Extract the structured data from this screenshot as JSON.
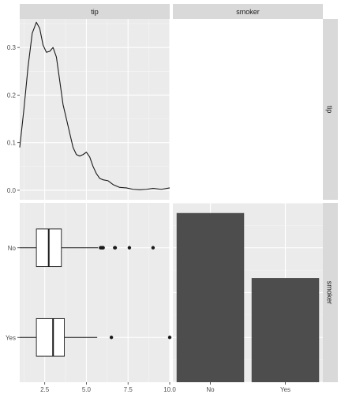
{
  "colors": {
    "panel_bg": "#ebebeb",
    "grid_major": "#ffffff",
    "grid_minor": "#f5f5f5",
    "strip_bg": "#d9d9d9",
    "ink": "#1a1a1a",
    "bar_fill": "#4d4d4d",
    "box_fill": "#ffffff"
  },
  "strips": {
    "col": [
      "tip",
      "smoker"
    ],
    "row": [
      "tip",
      "smoker"
    ]
  },
  "chart_data": [
    {
      "panel": "tip-tip",
      "type": "line",
      "xlim": [
        1,
        10
      ],
      "ylim": [
        -0.02,
        0.36
      ],
      "yticks": [
        0.0,
        0.1,
        0.2,
        0.3
      ],
      "ytick_labels": [
        "0.0",
        "0.1",
        "0.2",
        "0.3"
      ],
      "grid": true,
      "x": [
        1.0,
        1.25,
        1.5,
        1.75,
        2.0,
        2.2,
        2.4,
        2.6,
        2.8,
        3.0,
        3.2,
        3.4,
        3.6,
        3.8,
        4.0,
        4.2,
        4.4,
        4.6,
        4.8,
        5.0,
        5.2,
        5.4,
        5.6,
        5.8,
        6.0,
        6.3,
        6.6,
        7.0,
        7.4,
        7.8,
        8.2,
        8.6,
        9.0,
        9.5,
        10.0
      ],
      "y": [
        0.09,
        0.17,
        0.26,
        0.33,
        0.353,
        0.34,
        0.305,
        0.29,
        0.292,
        0.3,
        0.28,
        0.23,
        0.18,
        0.15,
        0.12,
        0.09,
        0.075,
        0.072,
        0.075,
        0.08,
        0.07,
        0.05,
        0.035,
        0.025,
        0.022,
        0.02,
        0.012,
        0.006,
        0.005,
        0.002,
        0.001,
        0.002,
        0.004,
        0.002,
        0.005
      ]
    },
    {
      "panel": "smoker-tip",
      "type": "box",
      "categories": [
        "No",
        "Yes"
      ],
      "xlim": [
        1,
        10
      ],
      "xticks": [
        2.5,
        5.0,
        7.5,
        10.0
      ],
      "xtick_labels": [
        "2.5",
        "5.0",
        "7.5",
        "10.0"
      ],
      "grid": true,
      "boxes": [
        {
          "category": "No",
          "whisker_low": 1.0,
          "q1": 2.0,
          "median": 2.74,
          "q3": 3.5,
          "whisker_high": 5.7,
          "outliers": [
            5.85,
            5.92,
            6.0,
            6.0,
            6.7,
            6.73,
            7.58,
            9.0
          ]
        },
        {
          "category": "Yes",
          "whisker_low": 1.0,
          "q1": 2.0,
          "median": 3.0,
          "q3": 3.68,
          "whisker_high": 5.65,
          "outliers": [
            6.5,
            10.0
          ]
        }
      ]
    },
    {
      "panel": "smoker-smoker",
      "type": "bar",
      "categories": [
        "No",
        "Yes"
      ],
      "values": [
        151,
        93
      ],
      "ylim": [
        0,
        160
      ],
      "grid": true
    }
  ]
}
